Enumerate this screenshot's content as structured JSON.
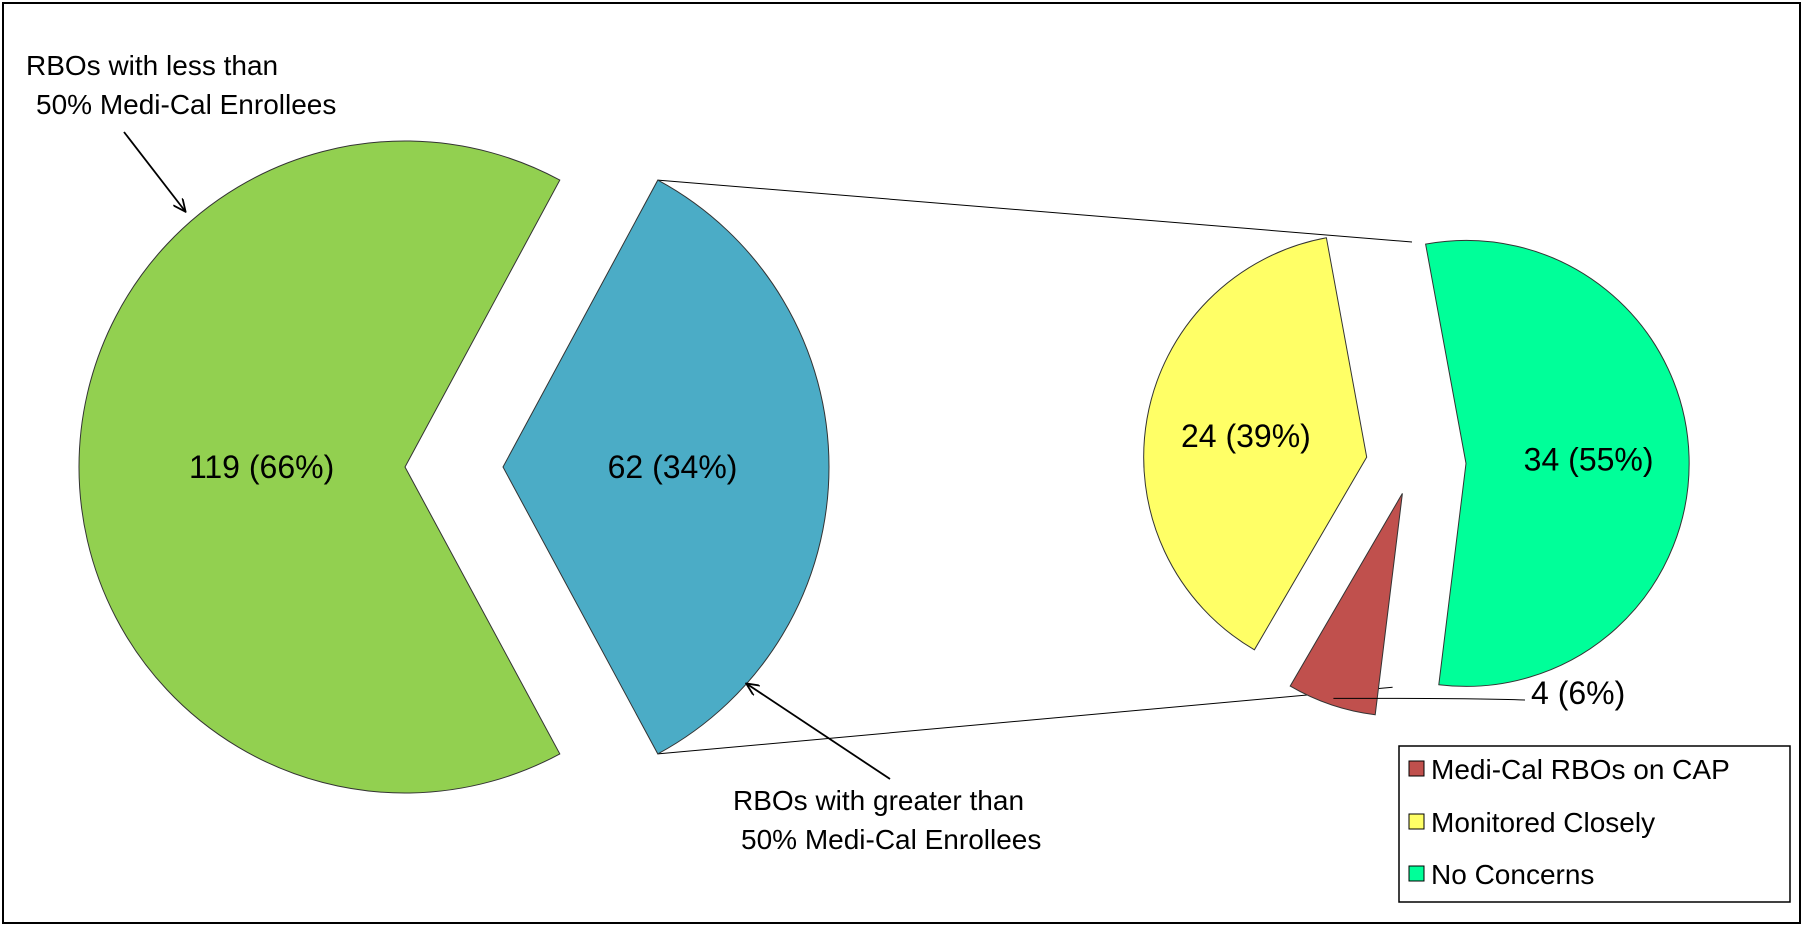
{
  "chart_data": {
    "type": "pie",
    "subtype": "bar-of-pie",
    "main_pie": {
      "slices": [
        {
          "label": "119 (66%)",
          "value": 119,
          "percent": 66,
          "color": "#92D050"
        },
        {
          "label": "62 (34%)",
          "value": 62,
          "percent": 34,
          "color": "#4BACC6"
        }
      ]
    },
    "sub_pie": {
      "slices": [
        {
          "name": "No Concerns",
          "label": "34 (55%)",
          "value": 34,
          "percent": 55,
          "color": "#00FF99"
        },
        {
          "name": "Monitored Closely",
          "label": "24 (39%)",
          "value": 24,
          "percent": 39,
          "color": "#FFFF66"
        },
        {
          "name": "Medi-Cal RBOs on CAP",
          "label": "4 (6%)",
          "value": 4,
          "percent": 6,
          "color": "#C0504D"
        }
      ]
    },
    "annotations": {
      "less_than_line1": "RBOs with less than",
      "less_than_line2": "50% Medi-Cal Enrollees",
      "greater_than_line1": "RBOs with greater than",
      "greater_than_line2": "50% Medi-Cal Enrollees"
    },
    "legend": {
      "placement": "bottom-right",
      "items": [
        {
          "label": "Medi-Cal RBOs on CAP",
          "color": "#C0504D"
        },
        {
          "label": "Monitored Closely",
          "color": "#FFFF66"
        },
        {
          "label": "No Concerns",
          "color": "#00FF99"
        }
      ]
    }
  }
}
